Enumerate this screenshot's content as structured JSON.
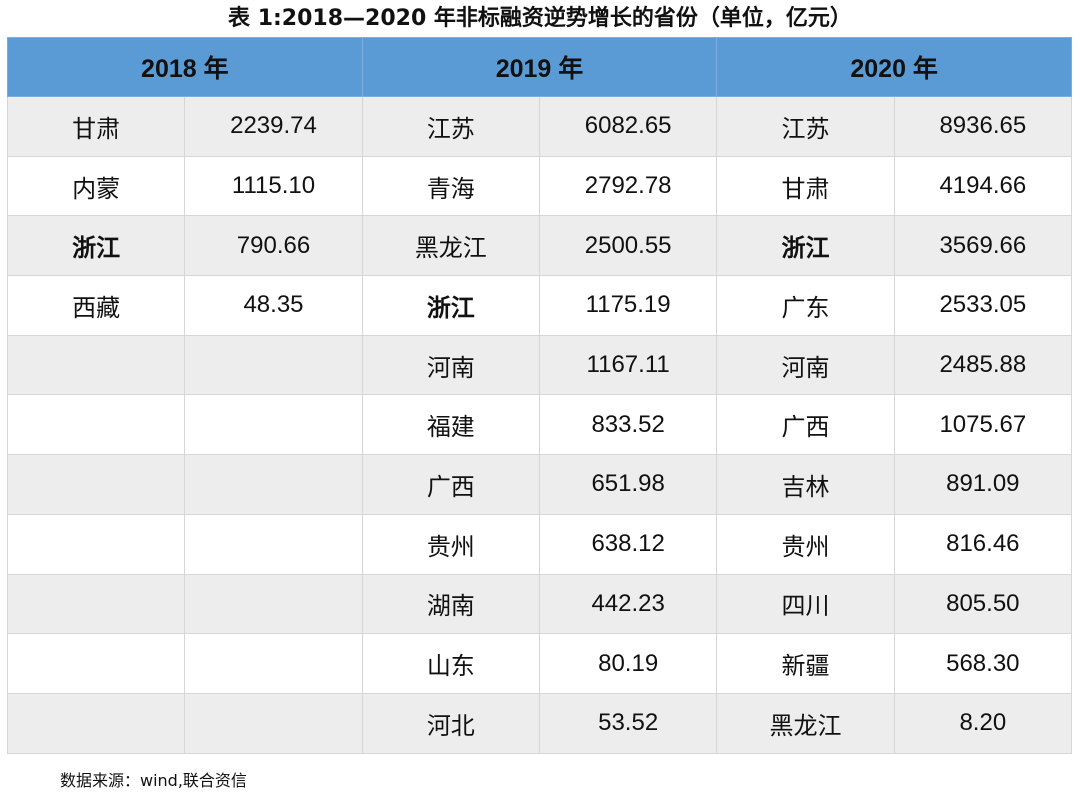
{
  "title": "表 1:2018—2020 年非标融资逆势增长的省份（单位，亿元）",
  "headers": [
    "2018 年",
    "2019 年",
    "2020 年"
  ],
  "highlight_province": "浙江",
  "columns": {
    "y2018": [
      [
        "甘肃",
        "2239.74"
      ],
      [
        "内蒙",
        "1115.10"
      ],
      [
        "浙江",
        "790.66"
      ],
      [
        "西藏",
        "48.35"
      ]
    ],
    "y2019": [
      [
        "江苏",
        "6082.65"
      ],
      [
        "青海",
        "2792.78"
      ],
      [
        "黑龙江",
        "2500.55"
      ],
      [
        "浙江",
        "1175.19"
      ],
      [
        "河南",
        "1167.11"
      ],
      [
        "福建",
        "833.52"
      ],
      [
        "广西",
        "651.98"
      ],
      [
        "贵州",
        "638.12"
      ],
      [
        "湖南",
        "442.23"
      ],
      [
        "山东",
        "80.19"
      ],
      [
        "河北",
        "53.52"
      ]
    ],
    "y2020": [
      [
        "江苏",
        "8936.65"
      ],
      [
        "甘肃",
        "4194.66"
      ],
      [
        "浙江",
        "3569.66"
      ],
      [
        "广东",
        "2533.05"
      ],
      [
        "河南",
        "2485.88"
      ],
      [
        "广西",
        "1075.67"
      ],
      [
        "吉林",
        "891.09"
      ],
      [
        "贵州",
        "816.46"
      ],
      [
        "四川",
        "805.50"
      ],
      [
        "新疆",
        "568.30"
      ],
      [
        "黑龙江",
        "8.20"
      ]
    ]
  },
  "source": "数据来源：wind,联合资信",
  "colors": {
    "header_bg": "#5b9bd5",
    "stripe": "#ededed"
  }
}
